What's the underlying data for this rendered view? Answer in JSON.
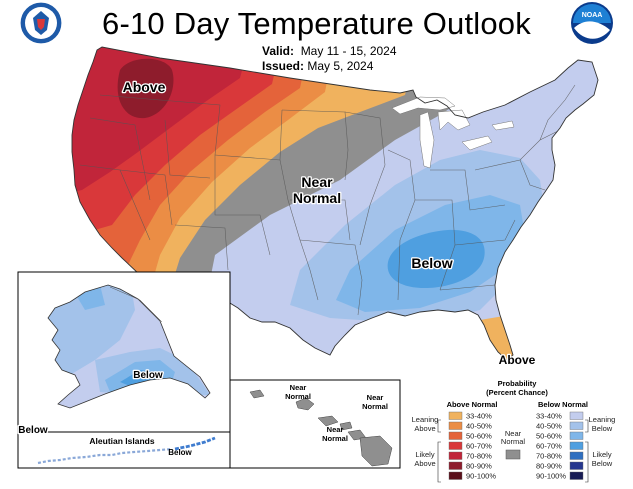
{
  "title": "6-10 Day Temperature Outlook",
  "valid_label": "Valid:",
  "valid_dates": "May 11 - 15, 2024",
  "issued_label": "Issued:",
  "issued_date": "May 5, 2024",
  "logos": {
    "left": "doc-seal",
    "right": "noaa-logo",
    "noaa_text": "NOAA"
  },
  "map_labels": {
    "above_nw": "Above",
    "near_normal_1": "Near",
    "near_normal_2": "Normal",
    "below_se": "Below",
    "above_fl": "Above",
    "alaska_below": "Below",
    "alaska_below_sw": "Below",
    "aleutian_title": "Aleutian Islands",
    "aleutian_below": "Below",
    "hawaii_near_a": [
      "Near",
      "Normal"
    ],
    "hawaii_near_b": [
      "Near",
      "Normal"
    ],
    "hawaii_near_c": [
      "Near",
      "Normal"
    ]
  },
  "legend": {
    "title1": "Probability",
    "title2": "(Percent Chance)",
    "above_header": "Above Normal",
    "below_header": "Below Normal",
    "leaning_above": [
      "Leaning",
      "Above"
    ],
    "likely_above": [
      "Likely",
      "Above"
    ],
    "near_normal": [
      "Near",
      "Normal"
    ],
    "leaning_below": [
      "Leaning",
      "Below"
    ],
    "likely_below": [
      "Likely",
      "Below"
    ],
    "above_bins": [
      {
        "label": "33-40%",
        "color": "#f0b25e"
      },
      {
        "label": "40-50%",
        "color": "#eb8d45"
      },
      {
        "label": "50-60%",
        "color": "#e4633a"
      },
      {
        "label": "60-70%",
        "color": "#d9383a"
      },
      {
        "label": "70-80%",
        "color": "#c1253a"
      },
      {
        "label": "80-90%",
        "color": "#8e1c2c"
      },
      {
        "label": "90-100%",
        "color": "#5a0f1a"
      }
    ],
    "below_bins": [
      {
        "label": "33-40%",
        "color": "#c3cdee"
      },
      {
        "label": "40-50%",
        "color": "#a3c2ea"
      },
      {
        "label": "50-60%",
        "color": "#7fb6e9"
      },
      {
        "label": "60-70%",
        "color": "#4f9fe0"
      },
      {
        "label": "70-80%",
        "color": "#2f6fc0"
      },
      {
        "label": "80-90%",
        "color": "#25368e"
      },
      {
        "label": "90-100%",
        "color": "#181c55"
      }
    ],
    "near_color": "#8f8f8f"
  }
}
